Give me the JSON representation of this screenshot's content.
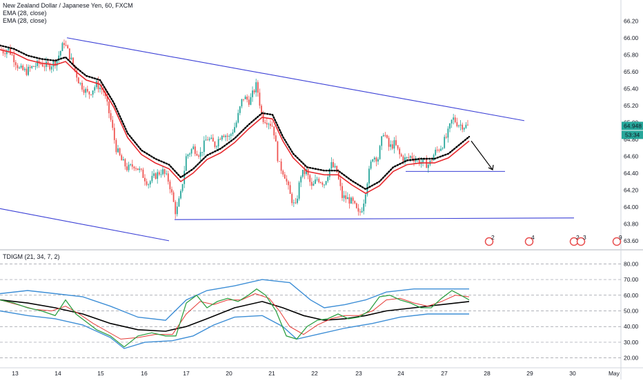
{
  "chart_data": {
    "type": "candlestick",
    "symbol_title": "New Zealand Dollar / Japanese Yen, 60, FXCM",
    "indicators": [
      "EMA (28, close)",
      "EMA (28, close)"
    ],
    "oscillator_title": "TDIGM (21, 34, 7, 2)",
    "y_ticks": [
      "66.20",
      "66.00",
      "65.80",
      "65.60",
      "65.40",
      "65.20",
      "65.00",
      "64.80",
      "64.60",
      "64.40",
      "64.20",
      "64.00",
      "63.80",
      "63.60"
    ],
    "y_range": [
      63.55,
      66.3
    ],
    "last_price_label": "64.948",
    "countdown_label": "53:34",
    "osc_ticks": [
      "80.00",
      "70.00",
      "60.00",
      "50.00",
      "40.00",
      "30.00",
      "20.00"
    ],
    "osc_range": [
      15,
      85
    ],
    "x_labels": [
      "13",
      "14",
      "15",
      "16",
      "17",
      "20",
      "21",
      "22",
      "23",
      "24",
      "27",
      "28",
      "29",
      "30",
      "May"
    ],
    "event_badges": [
      "2",
      "4",
      "2",
      "3",
      "9"
    ],
    "colors": {
      "up": "#26a69a",
      "down": "#ef5350",
      "ema_red": "#e8292e",
      "ema_dots": "#000000",
      "trendline": "#3a3fd6",
      "band": "#3d8ed6",
      "osc_green": "#2ea043",
      "osc_red": "#e53935",
      "osc_black": "#000000",
      "badge": "#e84d4d"
    },
    "price_series": [
      [
        0,
        65.86
      ],
      [
        5,
        65.84
      ],
      [
        12,
        65.87
      ],
      [
        20,
        65.76
      ],
      [
        28,
        65.63
      ],
      [
        38,
        65.6
      ],
      [
        48,
        65.66
      ],
      [
        58,
        65.7
      ],
      [
        70,
        65.66
      ],
      [
        82,
        65.73
      ],
      [
        93,
        65.95
      ],
      [
        104,
        65.72
      ],
      [
        115,
        65.47
      ],
      [
        128,
        65.33
      ],
      [
        140,
        65.45
      ],
      [
        150,
        65.37
      ],
      [
        160,
        65.05
      ],
      [
        168,
        64.7
      ],
      [
        176,
        64.55
      ],
      [
        185,
        64.45
      ],
      [
        195,
        64.5
      ],
      [
        205,
        64.4
      ],
      [
        215,
        64.28
      ],
      [
        225,
        64.37
      ],
      [
        235,
        64.43
      ],
      [
        245,
        64.3
      ],
      [
        255,
        63.92
      ],
      [
        262,
        64.15
      ],
      [
        270,
        64.6
      ],
      [
        280,
        64.7
      ],
      [
        290,
        64.62
      ],
      [
        300,
        64.82
      ],
      [
        312,
        64.73
      ],
      [
        322,
        64.88
      ],
      [
        332,
        64.82
      ],
      [
        342,
        64.98
      ],
      [
        352,
        65.3
      ],
      [
        362,
        65.25
      ],
      [
        372,
        65.45
      ],
      [
        380,
        65.05
      ],
      [
        388,
        65.02
      ],
      [
        396,
        64.95
      ],
      [
        404,
        64.5
      ],
      [
        412,
        64.4
      ],
      [
        420,
        64.15
      ],
      [
        428,
        63.98
      ],
      [
        436,
        64.38
      ],
      [
        444,
        64.42
      ],
      [
        452,
        64.22
      ],
      [
        460,
        64.34
      ],
      [
        470,
        64.28
      ],
      [
        480,
        64.5
      ],
      [
        488,
        64.42
      ],
      [
        496,
        64.12
      ],
      [
        505,
        64.09
      ],
      [
        512,
        64.04
      ],
      [
        520,
        63.9
      ],
      [
        526,
        64.02
      ],
      [
        532,
        64.3
      ],
      [
        540,
        64.6
      ],
      [
        548,
        64.58
      ],
      [
        556,
        64.9
      ],
      [
        564,
        64.7
      ],
      [
        572,
        64.75
      ],
      [
        580,
        64.6
      ],
      [
        588,
        64.56
      ],
      [
        596,
        64.6
      ],
      [
        605,
        64.55
      ],
      [
        614,
        64.52
      ],
      [
        622,
        64.5
      ],
      [
        630,
        64.64
      ],
      [
        640,
        64.72
      ],
      [
        648,
        64.84
      ],
      [
        656,
        65.05
      ],
      [
        664,
        64.98
      ],
      [
        672,
        64.96
      ],
      [
        680,
        64.95
      ]
    ],
    "ema_series": [
      [
        0,
        65.86
      ],
      [
        20,
        65.82
      ],
      [
        40,
        65.74
      ],
      [
        60,
        65.7
      ],
      [
        80,
        65.68
      ],
      [
        95,
        65.72
      ],
      [
        110,
        65.6
      ],
      [
        125,
        65.5
      ],
      [
        145,
        65.45
      ],
      [
        165,
        65.18
      ],
      [
        185,
        64.82
      ],
      [
        205,
        64.62
      ],
      [
        225,
        64.52
      ],
      [
        245,
        64.45
      ],
      [
        262,
        64.3
      ],
      [
        280,
        64.4
      ],
      [
        300,
        64.56
      ],
      [
        320,
        64.64
      ],
      [
        340,
        64.76
      ],
      [
        360,
        64.92
      ],
      [
        380,
        65.06
      ],
      [
        395,
        65.04
      ],
      [
        410,
        64.78
      ],
      [
        425,
        64.58
      ],
      [
        445,
        64.42
      ],
      [
        470,
        64.38
      ],
      [
        490,
        64.38
      ],
      [
        510,
        64.26
      ],
      [
        530,
        64.16
      ],
      [
        550,
        64.25
      ],
      [
        570,
        64.42
      ],
      [
        590,
        64.5
      ],
      [
        610,
        64.52
      ],
      [
        630,
        64.52
      ],
      [
        650,
        64.58
      ],
      [
        665,
        64.68
      ],
      [
        680,
        64.78
      ]
    ],
    "trendlines": [
      {
        "points": [
          [
            97,
            66.0
          ],
          [
            760,
            65.02
          ]
        ]
      },
      {
        "points": [
          [
            0,
            63.98
          ],
          [
            245,
            63.6
          ]
        ]
      },
      {
        "points": [
          [
            253,
            63.85
          ],
          [
            832,
            63.87
          ]
        ]
      },
      {
        "points": [
          [
            588,
            64.42
          ],
          [
            732,
            64.42
          ]
        ]
      }
    ],
    "arrow": {
      "from": [
        683,
        64.78
      ],
      "to": [
        714,
        64.44
      ]
    },
    "osc_green_series": [
      [
        0,
        57
      ],
      [
        20,
        55
      ],
      [
        40,
        52
      ],
      [
        60,
        50
      ],
      [
        80,
        47
      ],
      [
        95,
        57
      ],
      [
        110,
        48
      ],
      [
        125,
        43
      ],
      [
        140,
        38
      ],
      [
        160,
        34
      ],
      [
        180,
        27
      ],
      [
        200,
        34
      ],
      [
        220,
        36
      ],
      [
        240,
        34
      ],
      [
        255,
        34
      ],
      [
        270,
        55
      ],
      [
        285,
        60
      ],
      [
        300,
        52
      ],
      [
        315,
        56
      ],
      [
        330,
        58
      ],
      [
        345,
        56
      ],
      [
        360,
        60
      ],
      [
        372,
        64
      ],
      [
        385,
        60
      ],
      [
        400,
        50
      ],
      [
        415,
        34
      ],
      [
        430,
        32
      ],
      [
        445,
        40
      ],
      [
        460,
        44
      ],
      [
        475,
        45
      ],
      [
        490,
        48
      ],
      [
        505,
        45
      ],
      [
        520,
        46
      ],
      [
        535,
        50
      ],
      [
        550,
        59
      ],
      [
        565,
        60
      ],
      [
        580,
        57
      ],
      [
        595,
        55
      ],
      [
        610,
        52
      ],
      [
        625,
        52
      ],
      [
        640,
        58
      ],
      [
        655,
        63
      ],
      [
        668,
        60
      ],
      [
        680,
        57
      ]
    ],
    "osc_red_series": [
      [
        0,
        57
      ],
      [
        25,
        54
      ],
      [
        50,
        51
      ],
      [
        75,
        50
      ],
      [
        95,
        53
      ],
      [
        115,
        48
      ],
      [
        135,
        42
      ],
      [
        155,
        37
      ],
      [
        175,
        32
      ],
      [
        200,
        33
      ],
      [
        225,
        35
      ],
      [
        250,
        35
      ],
      [
        270,
        48
      ],
      [
        290,
        56
      ],
      [
        310,
        54
      ],
      [
        330,
        57
      ],
      [
        350,
        57
      ],
      [
        370,
        61
      ],
      [
        390,
        58
      ],
      [
        405,
        50
      ],
      [
        420,
        40
      ],
      [
        440,
        35
      ],
      [
        460,
        41
      ],
      [
        480,
        45
      ],
      [
        500,
        47
      ],
      [
        520,
        47
      ],
      [
        540,
        50
      ],
      [
        560,
        57
      ],
      [
        580,
        58
      ],
      [
        600,
        55
      ],
      [
        620,
        53
      ],
      [
        640,
        56
      ],
      [
        660,
        60
      ],
      [
        680,
        59
      ]
    ],
    "osc_black_series": [
      [
        0,
        57
      ],
      [
        40,
        55
      ],
      [
        80,
        52
      ],
      [
        120,
        48
      ],
      [
        160,
        42
      ],
      [
        200,
        38
      ],
      [
        240,
        37
      ],
      [
        270,
        40
      ],
      [
        300,
        45
      ],
      [
        340,
        52
      ],
      [
        380,
        56
      ],
      [
        410,
        52
      ],
      [
        440,
        47
      ],
      [
        470,
        44
      ],
      [
        500,
        45
      ],
      [
        530,
        47
      ],
      [
        560,
        50
      ],
      [
        600,
        52
      ],
      [
        640,
        54
      ],
      [
        680,
        56
      ]
    ],
    "osc_upper_series": [
      [
        0,
        61
      ],
      [
        40,
        63
      ],
      [
        80,
        61
      ],
      [
        120,
        59
      ],
      [
        160,
        53
      ],
      [
        200,
        46
      ],
      [
        240,
        44
      ],
      [
        270,
        57
      ],
      [
        300,
        63
      ],
      [
        340,
        66
      ],
      [
        380,
        70
      ],
      [
        420,
        68
      ],
      [
        450,
        57
      ],
      [
        470,
        52
      ],
      [
        500,
        54
      ],
      [
        530,
        57
      ],
      [
        560,
        62
      ],
      [
        600,
        64
      ],
      [
        640,
        64
      ],
      [
        680,
        64
      ]
    ],
    "osc_lower_series": [
      [
        0,
        50
      ],
      [
        40,
        47
      ],
      [
        80,
        45
      ],
      [
        120,
        41
      ],
      [
        160,
        33
      ],
      [
        180,
        26
      ],
      [
        210,
        30
      ],
      [
        250,
        31
      ],
      [
        280,
        34
      ],
      [
        310,
        41
      ],
      [
        340,
        46
      ],
      [
        380,
        47
      ],
      [
        410,
        40
      ],
      [
        430,
        32
      ],
      [
        460,
        35
      ],
      [
        500,
        39
      ],
      [
        540,
        42
      ],
      [
        580,
        46
      ],
      [
        620,
        48
      ],
      [
        650,
        48
      ],
      [
        680,
        48
      ]
    ]
  }
}
